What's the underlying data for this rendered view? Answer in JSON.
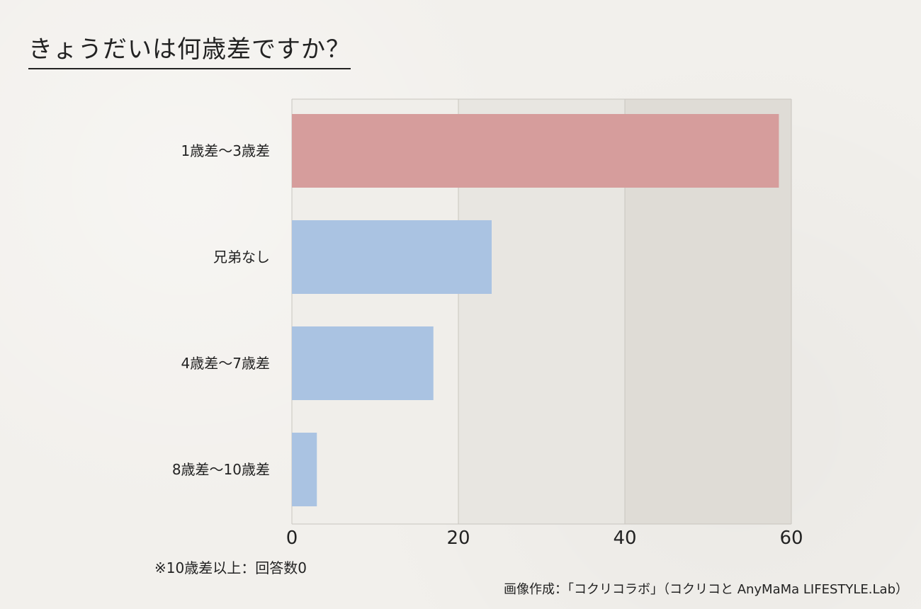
{
  "title": "きょうだいは何歳差ですか？",
  "note": "※10歳差以上：回答数0",
  "credit": "画像作成：「コクリコラボ」（コクリコと AnyMaMa LIFESTYLE.Lab）",
  "colors": {
    "highlight": "#d69d9c",
    "bar": "#aac3e2",
    "grid": "#c8c5bf",
    "shade": "#dfdcd6"
  },
  "chart_data": {
    "type": "bar",
    "orientation": "horizontal",
    "categories": [
      "1歳差〜3歳差",
      "兄弟なし",
      "4歳差〜7歳差",
      "8歳差〜10歳差"
    ],
    "values": [
      58.5,
      24,
      17,
      3
    ],
    "xlim": [
      0,
      60
    ],
    "xticks": [
      "0",
      "20",
      "40",
      "60"
    ],
    "highlight_index": 0,
    "grid": true
  }
}
